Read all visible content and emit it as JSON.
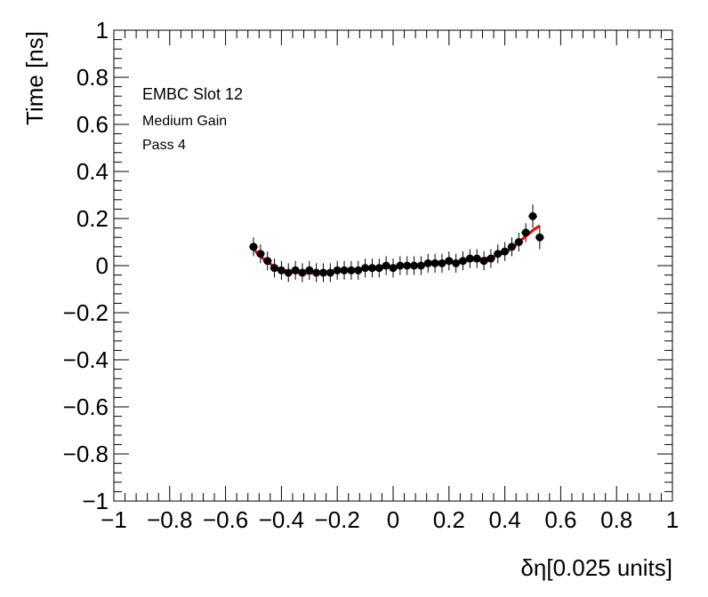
{
  "chart_data": {
    "type": "scatter",
    "xlabel": "δη[0.025 units]",
    "ylabel": "Time [ns]",
    "xlim": [
      -1,
      1
    ],
    "ylim": [
      -1,
      1
    ],
    "x_ticks": [
      -1,
      -0.8,
      -0.6,
      -0.4,
      -0.2,
      0,
      0.2,
      0.4,
      0.6,
      0.8,
      1
    ],
    "y_ticks": [
      -1,
      -0.8,
      -0.6,
      -0.4,
      -0.2,
      0,
      0.2,
      0.4,
      0.6,
      0.8,
      1
    ],
    "x_tick_labels": [
      "−1",
      "−0.8",
      "−0.6",
      "−0.4",
      "−0.2",
      "0",
      "0.2",
      "0.4",
      "0.6",
      "0.8",
      "1"
    ],
    "y_tick_labels": [
      "−1",
      "−0.8",
      "−0.6",
      "−0.4",
      "−0.2",
      "0",
      "0.2",
      "0.4",
      "0.6",
      "0.8",
      "1"
    ],
    "annotations": [
      "EMBC Slot 12",
      "Medium Gain",
      "Pass 4"
    ],
    "grid": false,
    "colors": {
      "points": "#000000",
      "fit": "#ff0000"
    },
    "series": [
      {
        "kind": "points_with_errors",
        "x": [
          -0.5,
          -0.475,
          -0.45,
          -0.425,
          -0.4,
          -0.375,
          -0.35,
          -0.325,
          -0.3,
          -0.275,
          -0.25,
          -0.225,
          -0.2,
          -0.175,
          -0.15,
          -0.125,
          -0.1,
          -0.075,
          -0.05,
          -0.025,
          0,
          0.025,
          0.05,
          0.075,
          0.1,
          0.125,
          0.15,
          0.175,
          0.2,
          0.225,
          0.25,
          0.275,
          0.3,
          0.325,
          0.35,
          0.375,
          0.4,
          0.425,
          0.45,
          0.475,
          0.5,
          0.525
        ],
        "y": [
          0.08,
          0.05,
          0.02,
          -0.01,
          -0.02,
          -0.03,
          -0.02,
          -0.03,
          -0.02,
          -0.03,
          -0.03,
          -0.03,
          -0.02,
          -0.02,
          -0.02,
          -0.02,
          -0.01,
          -0.01,
          -0.01,
          0.0,
          -0.01,
          0.0,
          0.0,
          0.0,
          0.0,
          0.01,
          0.01,
          0.01,
          0.02,
          0.01,
          0.02,
          0.03,
          0.03,
          0.02,
          0.03,
          0.05,
          0.06,
          0.08,
          0.1,
          0.14,
          0.21,
          0.12
        ],
        "y_err": [
          0.04,
          0.04,
          0.04,
          0.04,
          0.04,
          0.04,
          0.04,
          0.04,
          0.04,
          0.04,
          0.04,
          0.04,
          0.04,
          0.04,
          0.04,
          0.04,
          0.04,
          0.04,
          0.04,
          0.04,
          0.04,
          0.04,
          0.04,
          0.04,
          0.04,
          0.04,
          0.04,
          0.04,
          0.04,
          0.04,
          0.04,
          0.04,
          0.04,
          0.04,
          0.04,
          0.04,
          0.04,
          0.04,
          0.04,
          0.04,
          0.05,
          0.05
        ]
      },
      {
        "kind": "fit_line",
        "x": [
          -0.5,
          -0.475,
          -0.45,
          -0.425,
          -0.4,
          -0.375,
          -0.35,
          -0.3,
          -0.25,
          -0.2,
          -0.15,
          -0.1,
          -0.05,
          0,
          0.05,
          0.1,
          0.15,
          0.2,
          0.25,
          0.3,
          0.35,
          0.4,
          0.425,
          0.45,
          0.475,
          0.5,
          0.525
        ],
        "y": [
          0.07,
          0.04,
          0.015,
          -0.005,
          -0.02,
          -0.025,
          -0.03,
          -0.033,
          -0.03,
          -0.025,
          -0.02,
          -0.015,
          -0.01,
          -0.005,
          0.0,
          0.005,
          0.01,
          0.015,
          0.02,
          0.025,
          0.035,
          0.055,
          0.075,
          0.1,
          0.125,
          0.15,
          0.17
        ]
      }
    ]
  }
}
